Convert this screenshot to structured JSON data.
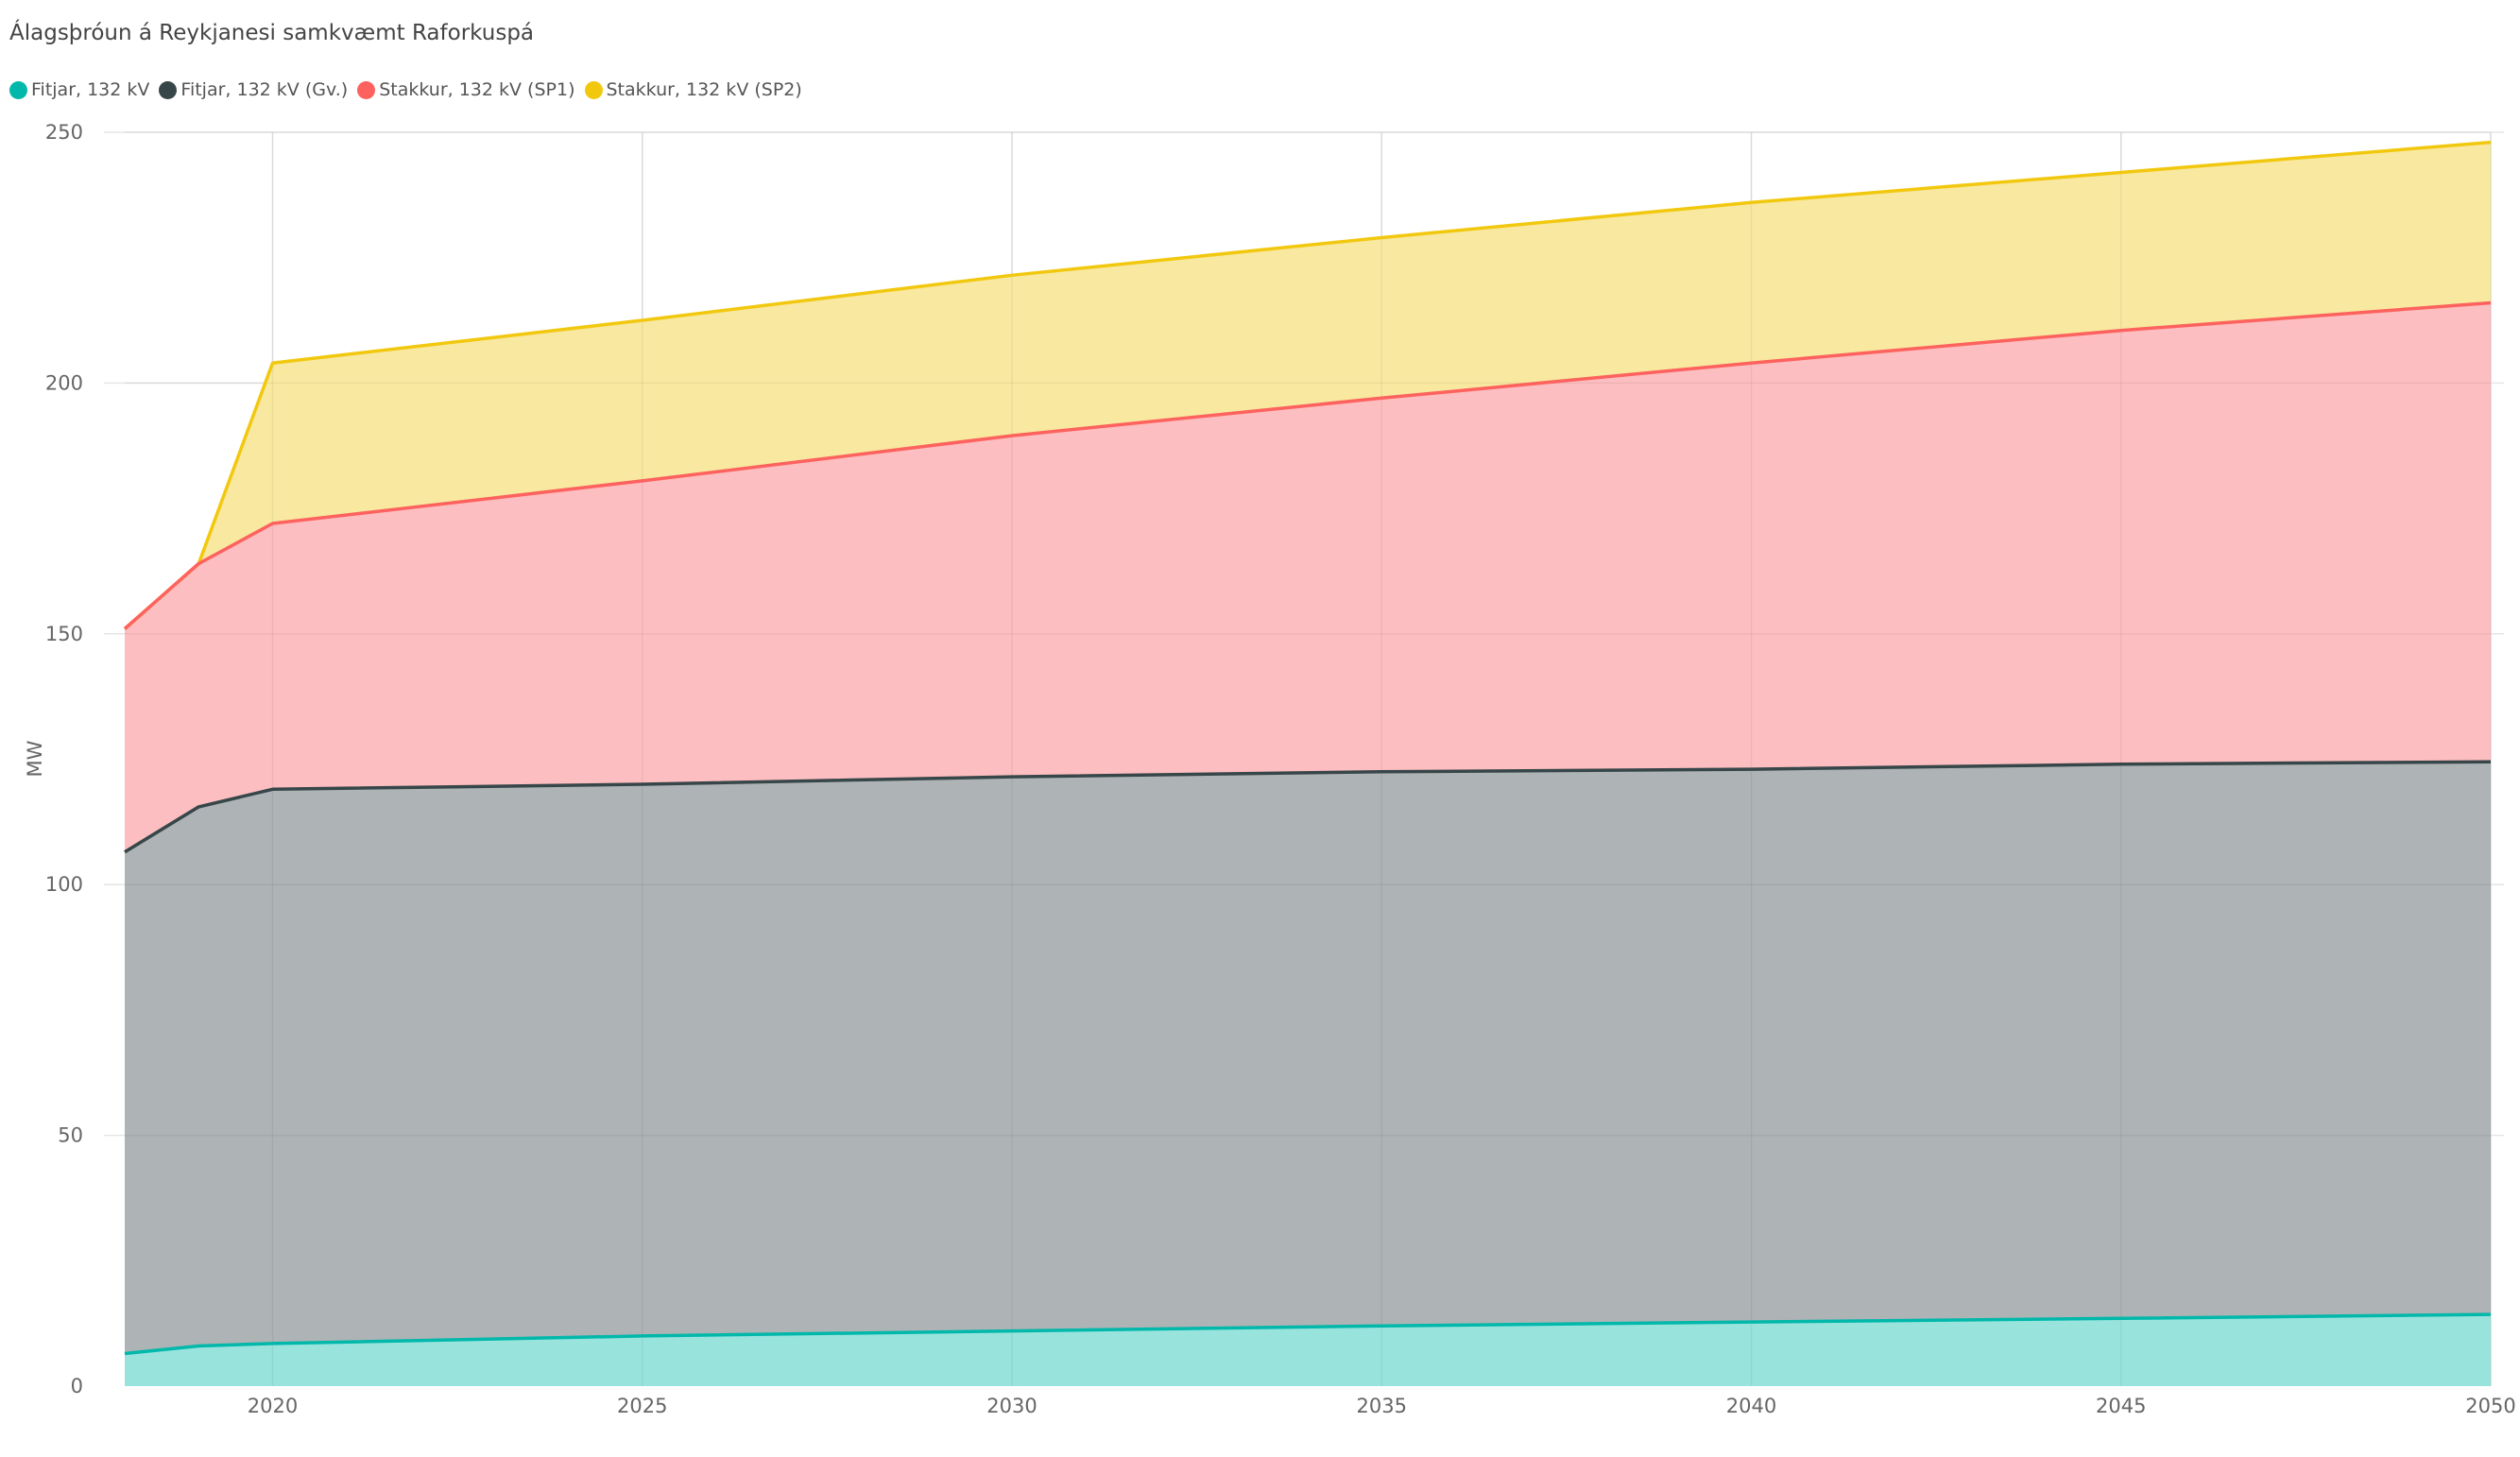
{
  "title": "Álagsþróun á Reykjanesi samkvæmt Raforkuspá",
  "legend": [
    {
      "label": "Fitjar, 132 kV",
      "color": "#01B8AA"
    },
    {
      "label": "Fitjar, 132 kV (Gv.)",
      "color": "#374649"
    },
    {
      "label": "Stakkur, 132 kV (SP1)",
      "color": "#FD625E"
    },
    {
      "label": "Stakkur, 132 kV (SP2)",
      "color": "#F2C80F"
    }
  ],
  "chart_data": {
    "type": "area",
    "stacked": false,
    "title": "Álagsþróun á Reykjanesi samkvæmt Raforkuspá",
    "xlabel": "",
    "ylabel": "MW",
    "xlim": [
      2018,
      2050
    ],
    "ylim": [
      0,
      250
    ],
    "x_ticks": [
      2020,
      2025,
      2030,
      2035,
      2040,
      2045,
      2050
    ],
    "y_ticks": [
      0,
      50,
      100,
      150,
      200,
      250
    ],
    "grid": true,
    "legend_position": "top-left",
    "series": [
      {
        "name": "Stakkur, 132 kV (SP2)",
        "color": "#F2C80F",
        "fill": "#F8E8A0",
        "points": [
          [
            2018,
            151
          ],
          [
            2019,
            164
          ],
          [
            2020,
            204
          ],
          [
            2025,
            212.5
          ],
          [
            2030,
            221.5
          ],
          [
            2035,
            229
          ],
          [
            2040,
            236
          ],
          [
            2045,
            242
          ],
          [
            2050,
            248
          ]
        ]
      },
      {
        "name": "Stakkur, 132 kV (SP1)",
        "color": "#FD625E",
        "fill": "#FCBEC0",
        "points": [
          [
            2018,
            151
          ],
          [
            2019,
            164
          ],
          [
            2020,
            172
          ],
          [
            2025,
            180.5
          ],
          [
            2030,
            189.5
          ],
          [
            2035,
            197
          ],
          [
            2040,
            204
          ],
          [
            2045,
            210.5
          ],
          [
            2050,
            216
          ]
        ]
      },
      {
        "name": "Fitjar, 132 kV (Gv.)",
        "color": "#374649",
        "fill": "#AEB3B5",
        "points": [
          [
            2018,
            106.5
          ],
          [
            2019,
            115.5
          ],
          [
            2020,
            119
          ],
          [
            2025,
            120
          ],
          [
            2030,
            121.5
          ],
          [
            2035,
            122.5
          ],
          [
            2040,
            123
          ],
          [
            2045,
            124
          ],
          [
            2050,
            124.5
          ]
        ]
      },
      {
        "name": "Fitjar, 132 kV",
        "color": "#01B8AA",
        "fill": "#99E3DD",
        "points": [
          [
            2018,
            6.5
          ],
          [
            2019,
            8
          ],
          [
            2020,
            8.5
          ],
          [
            2025,
            10
          ],
          [
            2030,
            11
          ],
          [
            2035,
            12
          ],
          [
            2040,
            12.8
          ],
          [
            2045,
            13.5
          ],
          [
            2050,
            14.3
          ]
        ]
      }
    ]
  }
}
